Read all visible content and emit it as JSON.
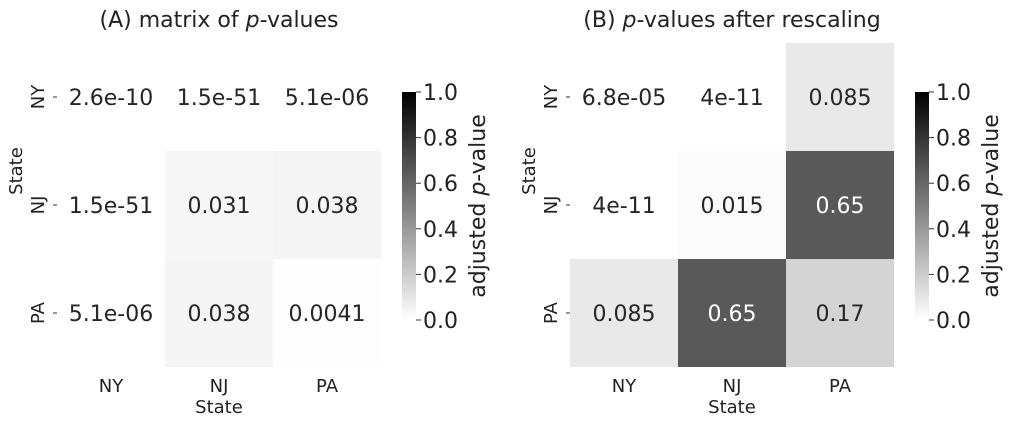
{
  "chart_data": [
    {
      "type": "heatmap",
      "title": "(A) matrix of p-values",
      "title_parts": {
        "prefix": "(A) matrix of ",
        "italic": "p",
        "suffix": "-values"
      },
      "xlabel": "State",
      "ylabel": "State",
      "x_categories": [
        "NY",
        "NJ",
        "PA"
      ],
      "y_categories": [
        "NY",
        "NJ",
        "PA"
      ],
      "cell_labels": [
        [
          "2.6e-10",
          "1.5e-51",
          "5.1e-06"
        ],
        [
          "1.5e-51",
          "0.031",
          "0.038"
        ],
        [
          "5.1e-06",
          "0.038",
          "0.0041"
        ]
      ],
      "values": [
        [
          2.6e-10,
          1.5e-51,
          5.1e-06
        ],
        [
          1.5e-51,
          0.031,
          0.038
        ],
        [
          5.1e-06,
          0.038,
          0.0041
        ]
      ],
      "colorbar": {
        "label_prefix": "adjusted ",
        "label_italic": "p",
        "label_suffix": "-value",
        "range": [
          0.0,
          1.0
        ],
        "ticks": [
          "0.0",
          "0.2",
          "0.4",
          "0.6",
          "0.8",
          "1.0"
        ],
        "colormap": [
          "#ffffff",
          "#000000"
        ]
      }
    },
    {
      "type": "heatmap",
      "title": "(B) p-values after rescaling",
      "title_parts": {
        "prefix": "(B) ",
        "italic": "p",
        "suffix": "-values after rescaling"
      },
      "xlabel": "State",
      "ylabel": "State",
      "x_categories": [
        "NY",
        "NJ",
        "PA"
      ],
      "y_categories": [
        "NY",
        "NJ",
        "PA"
      ],
      "cell_labels": [
        [
          "6.8e-05",
          "4e-11",
          "0.085"
        ],
        [
          "4e-11",
          "0.015",
          "0.65"
        ],
        [
          "0.085",
          "0.65",
          "0.17"
        ]
      ],
      "values": [
        [
          6.8e-05,
          4e-11,
          0.085
        ],
        [
          4e-11,
          0.015,
          0.65
        ],
        [
          0.085,
          0.65,
          0.17
        ]
      ],
      "colorbar": {
        "label_prefix": "adjusted ",
        "label_italic": "p",
        "label_suffix": "-value",
        "range": [
          0.0,
          1.0
        ],
        "ticks": [
          "0.0",
          "0.2",
          "0.4",
          "0.6",
          "0.8",
          "1.0"
        ],
        "colormap": [
          "#ffffff",
          "#000000"
        ]
      }
    }
  ]
}
